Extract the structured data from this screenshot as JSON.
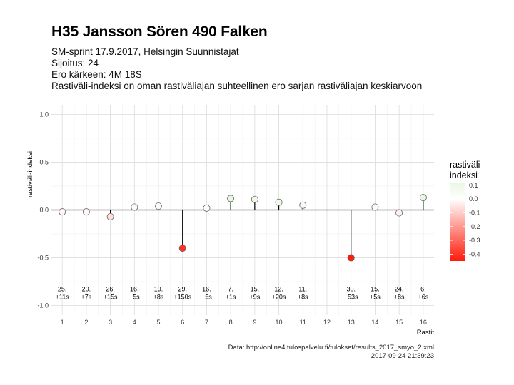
{
  "header": {
    "title": "H35 Jansson Sören 490 Falken",
    "subtitle_lines": [
      "SM-sprint 17.9.2017, Helsingin Suunnistajat",
      "Sijoitus: 24",
      "Ero kärkeen: 4M 18S",
      "Rastiväli-indeksi on oman rastiväliajan suhteellinen ero sarjan rastiväliajan keskiarvoon"
    ]
  },
  "footer": {
    "source": "Data: http://online4.tulospalvelu.fi/tulokset/results_2017_smyo_2.xml",
    "timestamp": "2017-09-24 21:39:23"
  },
  "legend": {
    "title_lines": [
      "rastiväli-",
      "indeksi"
    ],
    "labels": [
      "0.1",
      "0.0",
      "-0.1",
      "-0.2",
      "-0.3",
      "-0.4"
    ],
    "values": [
      0.1,
      0.0,
      -0.1,
      -0.2,
      -0.3,
      -0.4
    ],
    "range": [
      -0.45,
      0.12
    ],
    "colors": {
      "high": "#e8f7e1",
      "mid": "#ffffff",
      "low": "#ff1a0a"
    }
  },
  "chart_data": {
    "type": "lollipop",
    "xlabel": "Rastit",
    "ylabel": "rastiväli-indeksi",
    "ylim": [
      -1.1,
      1.1
    ],
    "yticks": [
      -1.0,
      -0.5,
      0.0,
      0.5,
      1.0
    ],
    "ytick_labels": [
      "-1.0",
      "-0.5",
      "0.0",
      "0.5",
      "1.0"
    ],
    "xticks": [
      1,
      2,
      3,
      4,
      5,
      6,
      7,
      8,
      9,
      10,
      11,
      12,
      13,
      14,
      15,
      16
    ],
    "xtick_labels": [
      "1",
      "2",
      "3",
      "4",
      "5",
      "6",
      "7",
      "8",
      "9",
      "10",
      "11",
      "12",
      "13",
      "14",
      "15",
      "16"
    ],
    "grid": true,
    "points": [
      {
        "x": 1,
        "y": -0.02,
        "rank": "25.",
        "diff": "+11s"
      },
      {
        "x": 2,
        "y": -0.02,
        "rank": "20.",
        "diff": "+7s"
      },
      {
        "x": 3,
        "y": -0.07,
        "rank": "26.",
        "diff": "+15s"
      },
      {
        "x": 4,
        "y": 0.03,
        "rank": "16.",
        "diff": "+5s"
      },
      {
        "x": 5,
        "y": 0.04,
        "rank": "19.",
        "diff": "+8s"
      },
      {
        "x": 6,
        "y": -0.4,
        "rank": "29.",
        "diff": "+150s"
      },
      {
        "x": 7,
        "y": 0.02,
        "rank": "16.",
        "diff": "+5s"
      },
      {
        "x": 8,
        "y": 0.12,
        "rank": "7.",
        "diff": "+1s"
      },
      {
        "x": 9,
        "y": 0.11,
        "rank": "15.",
        "diff": "+9s"
      },
      {
        "x": 10,
        "y": 0.08,
        "rank": "12.",
        "diff": "+20s"
      },
      {
        "x": 11,
        "y": 0.05,
        "rank": "11.",
        "diff": "+8s"
      },
      {
        "x": 13,
        "y": -0.5,
        "rank": "30.",
        "diff": "+53s"
      },
      {
        "x": 14,
        "y": 0.03,
        "rank": "15.",
        "diff": "+5s"
      },
      {
        "x": 15,
        "y": -0.03,
        "rank": "24.",
        "diff": "+8s"
      },
      {
        "x": 16,
        "y": 0.13,
        "rank": "6.",
        "diff": "+6s"
      }
    ]
  }
}
